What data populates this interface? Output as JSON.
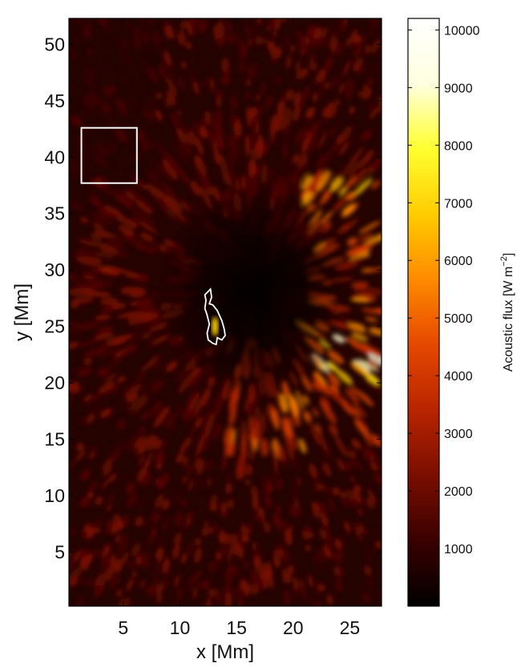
{
  "chart_data": [
    {
      "type": "heatmap",
      "title": "",
      "xlabel": "x [Mm]",
      "ylabel": "y [Mm]",
      "xlim": [
        0.2,
        27.8
      ],
      "ylim": [
        0.2,
        52.3
      ],
      "x_ticks": [
        5,
        10,
        15,
        20,
        25
      ],
      "x_tick_labels": [
        "5",
        "10",
        "15",
        "20",
        "25"
      ],
      "y_ticks": [
        5,
        10,
        15,
        20,
        25,
        30,
        35,
        40,
        45,
        50
      ],
      "y_tick_labels": [
        "5",
        "10",
        "15",
        "20",
        "25",
        "30",
        "35",
        "40",
        "45",
        "50"
      ],
      "colormap": [
        "#000000",
        "#3a0000",
        "#7a0e00",
        "#b82400",
        "#e54800",
        "#ff8a00",
        "#ffcc00",
        "#ffff30",
        "#ffffe0",
        "#ffffff"
      ],
      "overlays": {
        "box": {
          "x0": 1.3,
          "x1": 6.2,
          "y0": 37.7,
          "y1": 42.6,
          "color": "#ffffff"
        },
        "contour": {
          "color": "#ffffff",
          "x": [
            12.2,
            12.7,
            12.8,
            12.6,
            12.9,
            13.3,
            13.7,
            13.9,
            14.0,
            13.7,
            13.3,
            13.2,
            12.9,
            12.5,
            12.4,
            12.6,
            12.4,
            12.2,
            12.3,
            12.2
          ],
          "y": [
            27.8,
            28.3,
            27.6,
            27.0,
            26.9,
            26.4,
            25.5,
            24.8,
            24.2,
            23.8,
            24.0,
            23.4,
            23.5,
            23.8,
            24.4,
            25.2,
            26.0,
            26.6,
            27.3,
            27.8
          ]
        }
      },
      "colorbar": {
        "label": "Acoustic flux [W m",
        "label_exponent": "−2",
        "label_close": "]",
        "range": [
          0,
          10200
        ],
        "ticks": [
          1000,
          2000,
          3000,
          4000,
          5000,
          6000,
          7000,
          8000,
          9000,
          10000
        ],
        "tick_labels": [
          "1000",
          "2000",
          "3000",
          "4000",
          "5000",
          "6000",
          "7000",
          "8000",
          "9000",
          "10000"
        ]
      }
    }
  ]
}
